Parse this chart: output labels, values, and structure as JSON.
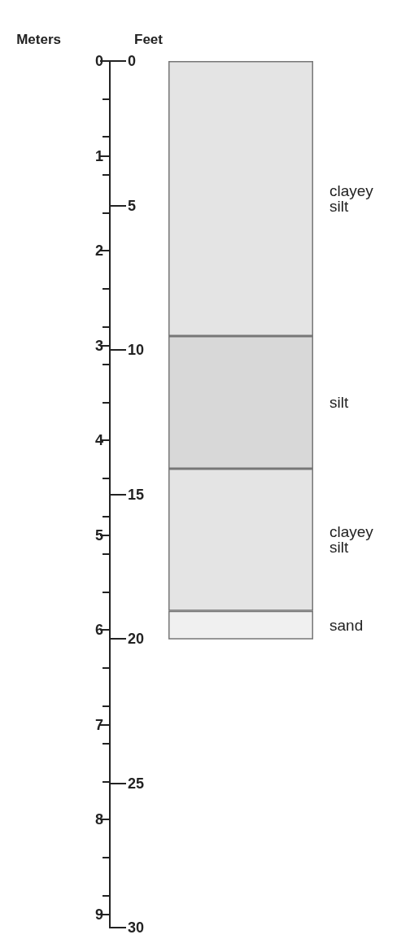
{
  "chart_data": {
    "type": "bar",
    "stacked": true,
    "categories": [
      null
    ],
    "ylabel": "Meters",
    "y2label": "Feet",
    "series": [
      {
        "name": "clayey silt",
        "color": "#e4e4e4",
        "values": [
          2.9
        ]
      },
      {
        "name": "silt",
        "color": "#d8d8d8",
        "values": [
          1.4
        ]
      },
      {
        "name": "clayey silt",
        "color": "#e4e4e4",
        "values": [
          1.5
        ]
      },
      {
        "name": "sand",
        "color": "#f0f0f0",
        "values": [
          0.3
        ]
      }
    ],
    "ylim": [
      9.14,
      0
    ],
    "yticks": [
      0,
      1,
      2,
      3,
      4,
      5,
      6,
      7,
      8,
      9
    ],
    "y2lim": [
      30,
      0
    ],
    "y2ticks": [
      0,
      5,
      10,
      15,
      20,
      25,
      30
    ],
    "tick_labels": "y",
    "grid": false,
    "legend": false
  }
}
